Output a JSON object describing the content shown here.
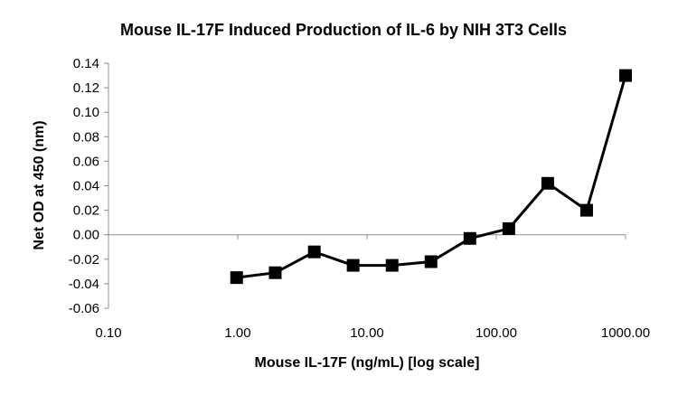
{
  "chart_data": {
    "type": "line",
    "title": "Mouse IL-17F Induced Production of IL-6 by NIH 3T3 Cells",
    "xlabel": "Mouse IL-17F (ng/mL) [log scale]",
    "ylabel": "Net OD at 450 (nm)",
    "x_scale": "log",
    "xlim": [
      0.1,
      1000
    ],
    "ylim": [
      -0.06,
      0.14
    ],
    "x_tick_values": [
      0.1,
      1,
      10,
      100,
      1000
    ],
    "x_tick_labels": [
      "0.10",
      "1.00",
      "10.00",
      "100.00",
      "1000.00"
    ],
    "y_tick_values": [
      -0.06,
      -0.04,
      -0.02,
      0.0,
      0.02,
      0.04,
      0.06,
      0.08,
      0.1,
      0.12,
      0.14
    ],
    "y_tick_labels": [
      "-0.06",
      "-0.04",
      "-0.02",
      "0.00",
      "0.02",
      "0.04",
      "0.06",
      "0.08",
      "0.10",
      "0.12",
      "0.14"
    ],
    "grid": false,
    "legend": "none",
    "series": [
      {
        "color": "#000000",
        "marker": "square",
        "x": [
          0.98,
          1.95,
          3.91,
          7.81,
          15.63,
          31.25,
          62.5,
          125,
          250,
          500,
          1000
        ],
        "y": [
          -0.035,
          -0.031,
          -0.014,
          -0.025,
          -0.025,
          -0.022,
          -0.003,
          0.005,
          0.042,
          0.02,
          0.13
        ]
      }
    ]
  }
}
